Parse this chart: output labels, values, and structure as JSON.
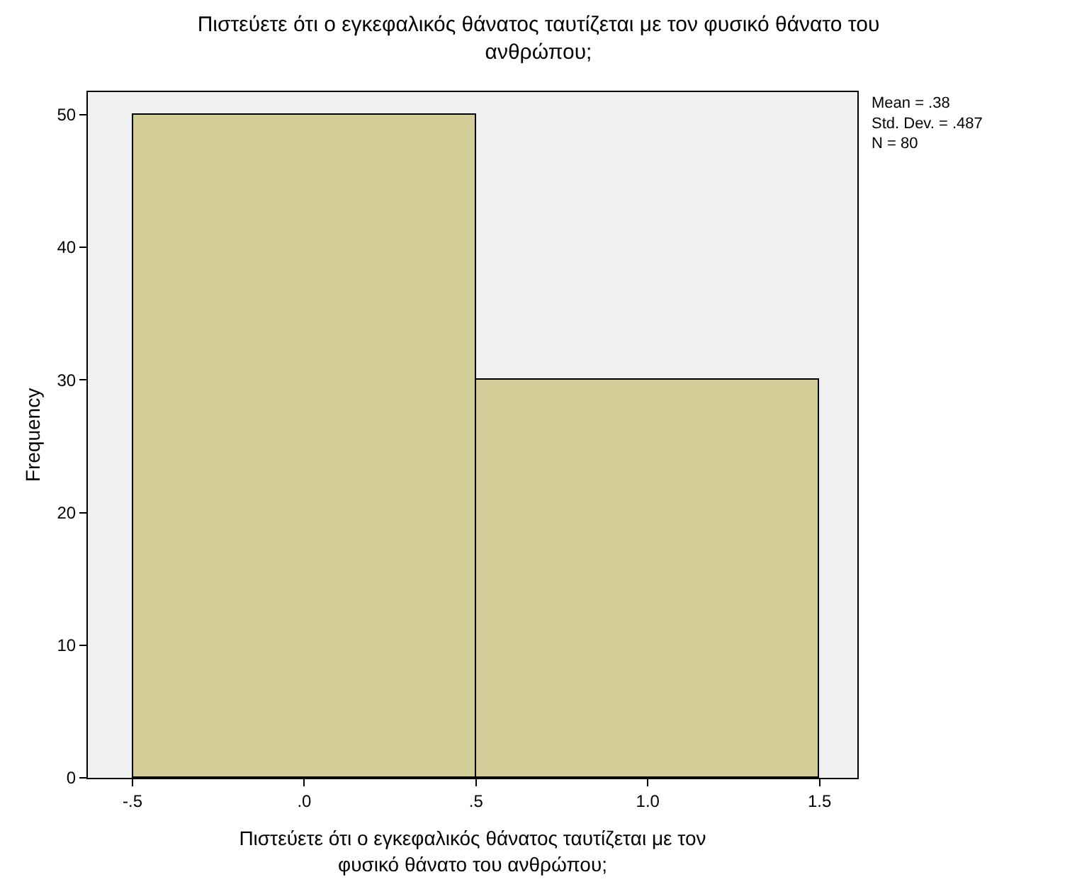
{
  "chart_data": {
    "type": "histogram",
    "title": "Πιστεύετε ότι ο εγκεφαλικός θάνατος ταυτίζεται με τον φυσικό θάνατο του ανθρώπου;",
    "xlabel": "Πιστεύετε ότι ο εγκεφαλικός θάνατος ταυτίζεται με τον φυσικό θάνατο του ανθρώπου;",
    "ylabel": "Frequency",
    "bins": [
      -0.5,
      0.5,
      1.5
    ],
    "values": [
      50,
      30
    ],
    "color": "#d3ce97",
    "xlim": [
      -0.63,
      1.61
    ],
    "ylim": [
      0,
      51.7
    ],
    "xticks": [
      {
        "value": -0.5,
        "label": "-.5"
      },
      {
        "value": 0,
        "label": ".0"
      },
      {
        "value": 0.5,
        "label": ".5"
      },
      {
        "value": 1.0,
        "label": "1.0"
      },
      {
        "value": 1.5,
        "label": "1.5"
      }
    ],
    "yticks": [
      0,
      10,
      20,
      30,
      40,
      50
    ],
    "grid": false,
    "annotations": [
      "Mean = .38\nStd. Dev. = .487\nN = 80"
    ]
  }
}
